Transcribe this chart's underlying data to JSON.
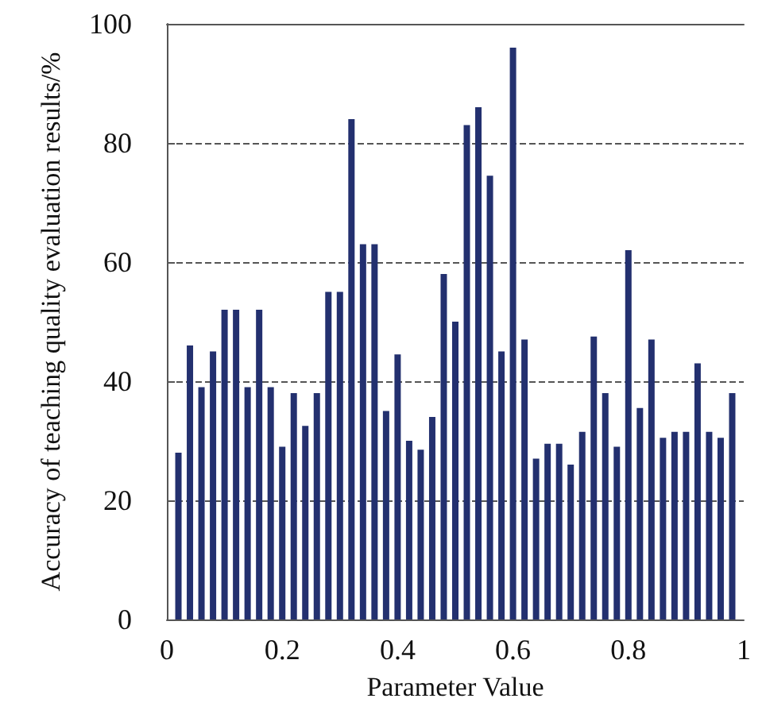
{
  "chart_data": {
    "type": "bar",
    "xlabel": "Parameter Value",
    "ylabel": "Accuracy of teaching quality evaluation results/%",
    "x": [
      0.02,
      0.04,
      0.06,
      0.08,
      0.1,
      0.12,
      0.14,
      0.16,
      0.18,
      0.2,
      0.22,
      0.24,
      0.26,
      0.28,
      0.3,
      0.32,
      0.34,
      0.36,
      0.38,
      0.4,
      0.42,
      0.44,
      0.46,
      0.48,
      0.5,
      0.52,
      0.54,
      0.56,
      0.58,
      0.6,
      0.62,
      0.64,
      0.66,
      0.68,
      0.7,
      0.72,
      0.74,
      0.76,
      0.78,
      0.8,
      0.82,
      0.84,
      0.86,
      0.88,
      0.9,
      0.92,
      0.94,
      0.96,
      0.98
    ],
    "values": [
      28,
      46,
      39,
      45,
      52,
      52,
      39,
      52,
      39,
      29,
      38,
      32.5,
      38,
      55,
      55,
      84,
      63,
      63,
      35,
      44.5,
      30,
      28.5,
      34,
      58,
      50,
      83,
      86,
      74.5,
      45,
      96,
      47,
      27,
      29.5,
      29.5,
      26,
      31.5,
      47.5,
      38,
      29,
      62,
      35.5,
      47,
      30.5,
      31.5,
      31.5,
      43,
      31.5,
      30.5,
      38
    ],
    "color": "#23306f",
    "xlim": [
      0,
      1
    ],
    "xticks": [
      0,
      0.2,
      0.4,
      0.6,
      0.8,
      1
    ],
    "ylim": [
      0,
      100
    ],
    "yticks": [
      0,
      20,
      40,
      60,
      80,
      100
    ],
    "grid": "y"
  }
}
